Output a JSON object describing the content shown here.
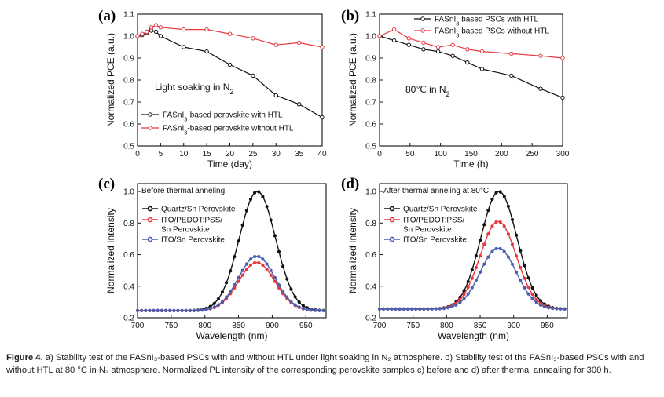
{
  "colors": {
    "black": "#111111",
    "red": "#e8383d",
    "blue": "#4a5fb0",
    "axis": "#111111"
  },
  "caption": {
    "label": "Figure 4.",
    "text": "a) Stability test of the FASnI₃-based PSCs with and without HTL under light soaking in N₂ atmosphere. b) Stability test of the FASnI₃-based PSCs with and without HTL at 80 °C in N₂ atmosphere. Normalized PL intensity of the corresponding perovskite samples c) before and d) after thermal annealing for 300 h."
  },
  "chart_data": [
    {
      "panel": "(a)",
      "type": "line",
      "xlabel": "Time (day)",
      "ylabel": "Normalized PCE (a.u.)",
      "xlim": [
        0,
        40
      ],
      "ylim": [
        0.5,
        1.1
      ],
      "xticks": [
        "0",
        "5",
        "10",
        "15",
        "20",
        "25",
        "30",
        "35",
        "40"
      ],
      "yticks": [
        "0.5",
        "0.6",
        "0.7",
        "0.8",
        "0.9",
        "1.0",
        "1.1"
      ],
      "annotation": "Light soaking in N₂",
      "legend": "bottom-right",
      "series": [
        {
          "name": "FASnI₃-based perovskite with HTL",
          "color": "#111111",
          "x": [
            0,
            1,
            2,
            3,
            4,
            5,
            10,
            15,
            20,
            25,
            30,
            35,
            40
          ],
          "y": [
            1.0,
            1.005,
            1.015,
            1.025,
            1.02,
            1.0,
            0.95,
            0.93,
            0.87,
            0.82,
            0.73,
            0.69,
            0.63
          ]
        },
        {
          "name": "FASnI₃-based perovskite without HTL",
          "color": "#e8383d",
          "x": [
            0,
            1,
            2,
            3,
            4,
            5,
            10,
            15,
            20,
            25,
            30,
            35,
            40
          ],
          "y": [
            1.0,
            1.01,
            1.02,
            1.04,
            1.05,
            1.04,
            1.03,
            1.03,
            1.01,
            0.99,
            0.96,
            0.97,
            0.95
          ]
        }
      ]
    },
    {
      "panel": "(b)",
      "type": "line",
      "xlabel": "Time (h)",
      "ylabel": "Normalized PCE (a.u.)",
      "xlim": [
        0,
        300
      ],
      "ylim": [
        0.5,
        1.1
      ],
      "xticks": [
        "0",
        "50",
        "100",
        "150",
        "200",
        "250",
        "300"
      ],
      "yticks": [
        "0.5",
        "0.6",
        "0.7",
        "0.8",
        "0.9",
        "1.0",
        "1.1"
      ],
      "annotation": "80℃ in N₂",
      "legend": "top",
      "series": [
        {
          "name": "FASnI₃ based PSCs with HTL",
          "color": "#111111",
          "x": [
            0,
            24,
            48,
            72,
            96,
            120,
            144,
            168,
            216,
            264,
            300
          ],
          "y": [
            1.0,
            0.98,
            0.96,
            0.94,
            0.93,
            0.91,
            0.88,
            0.85,
            0.82,
            0.76,
            0.72
          ]
        },
        {
          "name": "FASnI₃ based PSCs without HTL",
          "color": "#e8383d",
          "x": [
            0,
            24,
            48,
            72,
            96,
            120,
            144,
            168,
            216,
            264,
            300
          ],
          "y": [
            1.0,
            1.03,
            0.99,
            0.97,
            0.95,
            0.96,
            0.94,
            0.93,
            0.92,
            0.91,
            0.9
          ]
        }
      ]
    },
    {
      "panel": "(c)",
      "type": "line",
      "xlabel": "Wavelength (nm)",
      "ylabel": "Normalized Intensity",
      "xlim": [
        700,
        980
      ],
      "ylim": [
        0.2,
        1.05
      ],
      "xticks": [
        "700",
        "750",
        "800",
        "850",
        "900",
        "950"
      ],
      "yticks": [
        "0.2",
        "0.4",
        "0.6",
        "0.8",
        "1.0"
      ],
      "annotation": "Before thermal anneling",
      "legend": "top-left",
      "baseline": 0.245,
      "series": [
        {
          "name": "Quartz/Sn Perovskite",
          "color": "#111111",
          "peak_nm": 878,
          "peak": 1.0
        },
        {
          "name": "ITO/PEDOT:PSS/ Sn Perovskite",
          "color": "#e8383d",
          "peak_nm": 877,
          "peak": 0.55
        },
        {
          "name": "ITO/Sn Perovskite",
          "color": "#4a5fb0",
          "peak_nm": 877,
          "peak": 0.59
        }
      ]
    },
    {
      "panel": "(d)",
      "type": "line",
      "xlabel": "Wavelength (nm)",
      "ylabel": "Normalized Intensity",
      "xlim": [
        700,
        980
      ],
      "ylim": [
        0.2,
        1.05
      ],
      "xticks": [
        "700",
        "750",
        "800",
        "850",
        "900",
        "950"
      ],
      "yticks": [
        "0.2",
        "0.4",
        "0.6",
        "0.8",
        "1.0"
      ],
      "annotation": "After thermal anneling at 80°C",
      "legend": "top-left",
      "baseline": 0.255,
      "series": [
        {
          "name": "Quartz/Sn Perovskite",
          "color": "#111111",
          "peak_nm": 878,
          "peak": 1.0
        },
        {
          "name": "ITO/PEDOT:PSS/ Sn Perovskite",
          "color": "#e8383d",
          "peak_nm": 877,
          "peak": 0.81
        },
        {
          "name": "ITO/Sn Perovskite",
          "color": "#4a5fb0",
          "peak_nm": 877,
          "peak": 0.64
        }
      ]
    }
  ]
}
